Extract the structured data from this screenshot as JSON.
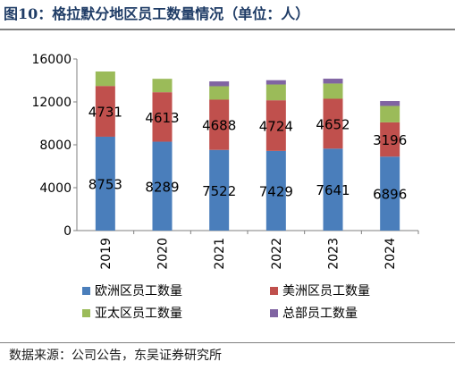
{
  "title": "图10：格拉默分地区员工数量情况（单位：人）",
  "source": "数据来源：公司公告，东吴证券研究所",
  "chart_data": {
    "type": "bar",
    "stacked": true,
    "categories": [
      "2019",
      "2020",
      "2021",
      "2022",
      "2023",
      "2024"
    ],
    "series": [
      {
        "name": "欧洲区员工数量",
        "values": [
          8753,
          8289,
          7522,
          7429,
          7641,
          6896
        ],
        "color": "#4a7ebb",
        "labeled": true
      },
      {
        "name": "美洲区员工数量",
        "values": [
          4731,
          4613,
          4688,
          4724,
          4652,
          3196
        ],
        "color": "#c0504d",
        "labeled": true
      },
      {
        "name": "亚太区员工数量",
        "values": [
          1350,
          1250,
          1250,
          1470,
          1420,
          1530
        ],
        "color": "#9bbb59",
        "labeled": false
      },
      {
        "name": "总部员工数量",
        "values": [
          0,
          0,
          450,
          400,
          450,
          460
        ],
        "color": "#8064a2",
        "labeled": false
      }
    ],
    "yticks": [
      "0",
      "4000",
      "8000",
      "12000",
      "16000"
    ],
    "ylim": [
      0,
      16000
    ],
    "legend": "bottom",
    "grid": false
  }
}
